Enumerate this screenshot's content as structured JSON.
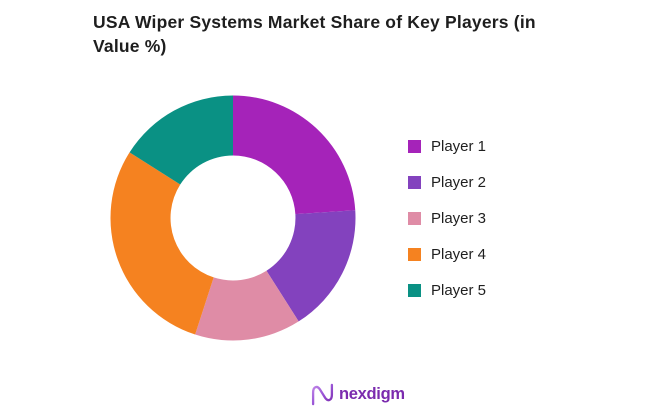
{
  "header": {
    "title_lines": [
      "USA Wiper Systems Market Share of Key Players (in",
      "Value %)"
    ]
  },
  "chart_data": {
    "type": "pie",
    "subtype": "donut",
    "title": "USA Wiper Systems Market Share of Key Players (in Value %)",
    "categories": [
      "Player 1",
      "Player 2",
      "Player 3",
      "Player 4",
      "Player 5"
    ],
    "values": [
      24,
      17,
      14,
      29,
      16
    ],
    "value_unit": "% value share (estimated from arc angles; no data labels shown)",
    "colors": [
      "#A523B9",
      "#8342BE",
      "#DF8CA6",
      "#F58220",
      "#0A9184"
    ],
    "start_angle_deg": -90,
    "direction": "clockwise",
    "inner_radius_ratio": 0.51,
    "legend_position": "right",
    "data_labels_visible": false,
    "background_color": "#FFFFFF"
  },
  "footer": {
    "brand": "nexdigm",
    "brand_color": "#7B2BAE",
    "logo_icon": "nexdigm-n-wave"
  }
}
